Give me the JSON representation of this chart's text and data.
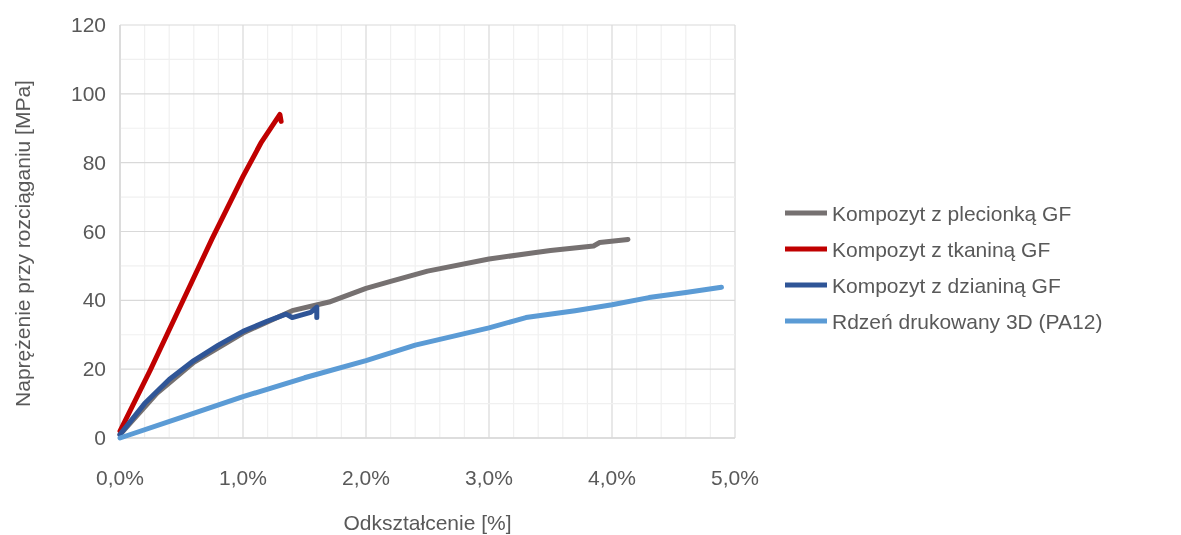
{
  "chart_data": {
    "type": "line",
    "xlabel": "Odkształcenie [%]",
    "ylabel": "Naprężenie przy rozciąganiu [MPa]",
    "xlim": [
      0,
      5
    ],
    "ylim": [
      0,
      120
    ],
    "xticks": [
      {
        "value": 0,
        "label": "0,0%"
      },
      {
        "value": 0.2,
        "label": null
      },
      {
        "value": 0.4,
        "label": null
      },
      {
        "value": 0.6,
        "label": null
      },
      {
        "value": 0.8,
        "label": null
      },
      {
        "value": 1,
        "label": "1,0%"
      },
      {
        "value": 1.2,
        "label": null
      },
      {
        "value": 1.4,
        "label": null
      },
      {
        "value": 1.6,
        "label": null
      },
      {
        "value": 1.8,
        "label": null
      },
      {
        "value": 2,
        "label": "2,0%"
      },
      {
        "value": 2.2,
        "label": null
      },
      {
        "value": 2.4,
        "label": null
      },
      {
        "value": 2.6,
        "label": null
      },
      {
        "value": 2.8,
        "label": null
      },
      {
        "value": 3,
        "label": "3,0%"
      },
      {
        "value": 3.2,
        "label": null
      },
      {
        "value": 3.4,
        "label": null
      },
      {
        "value": 3.6,
        "label": null
      },
      {
        "value": 3.8,
        "label": null
      },
      {
        "value": 4,
        "label": "4,0%"
      },
      {
        "value": 4.2,
        "label": null
      },
      {
        "value": 4.4,
        "label": null
      },
      {
        "value": 4.6,
        "label": null
      },
      {
        "value": 4.8,
        "label": null
      },
      {
        "value": 5,
        "label": "5,0%"
      }
    ],
    "yticks": [
      0,
      {
        "value": 10,
        "label": null
      },
      20,
      {
        "value": 30,
        "label": null
      },
      40,
      {
        "value": 50,
        "label": null
      },
      60,
      {
        "value": 70,
        "label": null
      },
      80,
      {
        "value": 90,
        "label": null
      },
      100,
      {
        "value": 110,
        "label": null
      },
      120
    ],
    "grid": true,
    "legend": "right",
    "marker": "none",
    "line_style": "solid",
    "series": [
      {
        "name": "Kompozyt z plecionką GF",
        "color": "#767171",
        "x": [
          0,
          0.3,
          0.6,
          1.0,
          1.4,
          1.7,
          2.0,
          2.2,
          2.5,
          3.0,
          3.5,
          3.85,
          3.9,
          4.13
        ],
        "values": [
          1,
          13,
          22,
          30.5,
          37,
          39.5,
          43.5,
          45.5,
          48.5,
          52,
          54.5,
          55.8,
          56.8,
          57.7
        ]
      },
      {
        "name": "Kompozyt z tkaniną GF",
        "color": "#c00000",
        "x": [
          0,
          0.25,
          0.5,
          0.75,
          1.0,
          1.15,
          1.3,
          1.31
        ],
        "values": [
          2,
          20,
          39,
          58,
          76,
          86,
          94,
          92
        ]
      },
      {
        "name": "Kompozyt z dzianiną GF",
        "color": "#2f5597",
        "x": [
          0,
          0.2,
          0.4,
          0.6,
          0.8,
          1.0,
          1.2,
          1.35,
          1.4,
          1.55,
          1.6,
          1.6
        ],
        "values": [
          1,
          10,
          17,
          22.5,
          27,
          31,
          34,
          36,
          35,
          36.5,
          38,
          35
        ]
      },
      {
        "name": "Rdzeń drukowany 3D (PA12)",
        "color": "#5b9bd5",
        "x": [
          0,
          0.5,
          1.0,
          1.5,
          2.0,
          2.4,
          3.0,
          3.3,
          3.7,
          4.0,
          4.3,
          4.6,
          4.89
        ],
        "values": [
          0,
          6,
          12,
          17.5,
          22.5,
          27,
          32,
          35,
          37,
          38.7,
          40.8,
          42.3,
          43.8
        ]
      }
    ]
  }
}
